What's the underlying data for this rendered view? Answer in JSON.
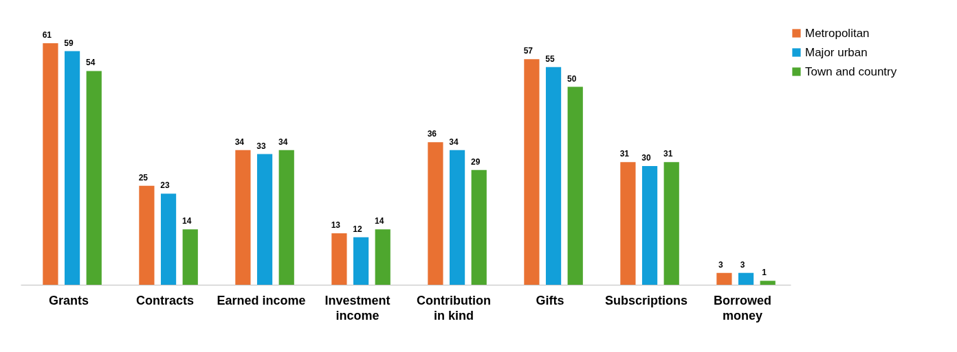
{
  "chart_data": {
    "type": "bar",
    "categories": [
      "Grants",
      "Contracts",
      "Earned income",
      "Investment income",
      "Contribution in kind",
      "Gifts",
      "Subscriptions",
      "Borrowed money"
    ],
    "series": [
      {
        "name": "Metropolitan",
        "color": "#e97132",
        "values": [
          61,
          25,
          34,
          13,
          36,
          57,
          31,
          3
        ]
      },
      {
        "name": "Major urban",
        "color": "#129fd9",
        "values": [
          59,
          23,
          33,
          12,
          34,
          55,
          30,
          3
        ]
      },
      {
        "name": "Town and country",
        "color": "#4ea72e",
        "values": [
          54,
          14,
          34,
          14,
          29,
          50,
          31,
          1
        ]
      }
    ],
    "data_labels": true,
    "legend": "right",
    "tick_labels": "x"
  }
}
